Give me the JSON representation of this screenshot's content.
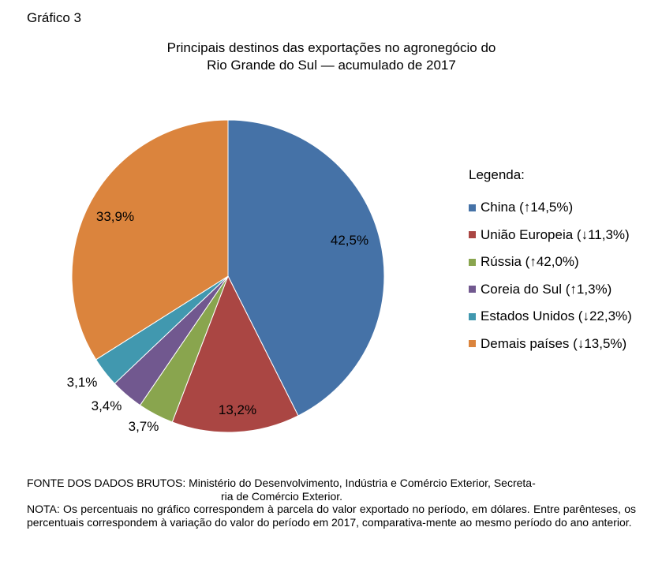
{
  "figure_label": "Gráfico 3",
  "chart_data": {
    "type": "pie",
    "title_lines": [
      "Principais destinos das exportações no agronegócio do",
      "Rio Grande do Sul — acumulado de 2017"
    ],
    "legend_title": "Legenda:",
    "slices": [
      {
        "name": "China",
        "value": 42.5,
        "label": "42,5%",
        "legend": "China (↑14,5%)",
        "color": "#4572a7"
      },
      {
        "name": "União Europeia",
        "value": 13.2,
        "label": "13,2%",
        "legend": "União Europeia (↓11,3%)",
        "color": "#aa4643"
      },
      {
        "name": "Rússia",
        "value": 3.7,
        "label": "3,7%",
        "legend": "Rússia (↑42,0%)",
        "color": "#89a54e"
      },
      {
        "name": "Coreia do Sul",
        "value": 3.4,
        "label": "3,4%",
        "legend": "Coreia do Sul (↑1,3%)",
        "color": "#71588f"
      },
      {
        "name": "Estados Unidos",
        "value": 3.1,
        "label": "3,1%",
        "legend": "Estados Unidos (↓22,3%)",
        "color": "#4198af"
      },
      {
        "name": "Demais países",
        "value": 33.9,
        "label": "33,9%",
        "legend": "Demais países (↓13,5%)",
        "color": "#db843d"
      }
    ]
  },
  "footer": {
    "source_line1": "FONTE DOS DADOS BRUTOS: Ministério do Desenvolvimento, Indústria e Comércio Exterior, Secreta-",
    "source_line2": "ria de Comércio Exterior.",
    "note": "NOTA: Os percentuais no gráfico correspondem à parcela do valor exportado no período, em dólares. Entre parênteses, os percentuais correspondem à variação do valor do período em 2017, comparativa-mente ao mesmo período do ano anterior."
  }
}
